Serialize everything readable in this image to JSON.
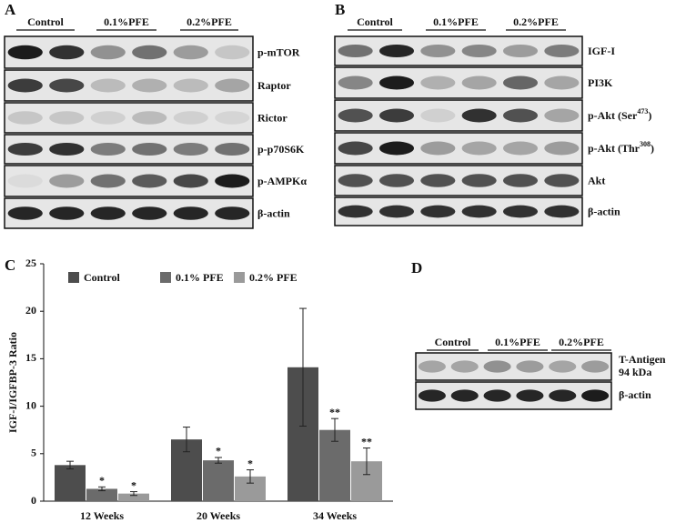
{
  "panel_a": {
    "label": "A",
    "groups": [
      "Control",
      "0.1%PFE",
      "0.2%PFE"
    ],
    "rows": [
      {
        "main": "p-mTOR"
      },
      {
        "main": "Raptor"
      },
      {
        "main": "Rictor"
      },
      {
        "main": "p-p70S6K"
      },
      {
        "main": "p-AMPKα"
      },
      {
        "main": "β-actin"
      }
    ]
  },
  "panel_b": {
    "label": "B",
    "groups": [
      "Control",
      "0.1%PFE",
      "0.2%PFE"
    ],
    "rows": [
      {
        "main": "IGF-I"
      },
      {
        "main": "PI3K"
      },
      {
        "main": "p-Akt (Ser",
        "sup": "473",
        "tail": ")"
      },
      {
        "main": "p-Akt (Thr",
        "sup": "308",
        "tail": ")"
      },
      {
        "main": "Akt"
      },
      {
        "main": "β-actin"
      }
    ]
  },
  "panel_c": {
    "label": "C"
  },
  "chart_data": {
    "type": "bar",
    "ylabel": "IGF-I/IGFBP-3 Ratio",
    "categories": [
      "12 Weeks",
      "20 Weeks",
      "34 Weeks"
    ],
    "series": [
      {
        "name": "Control",
        "color": "#4d4d4d",
        "values": [
          3.8,
          6.5,
          14.1
        ],
        "errors": [
          0.4,
          1.3,
          6.2
        ]
      },
      {
        "name": "0.1% PFE",
        "color": "#6b6b6b",
        "values": [
          1.3,
          4.3,
          7.5
        ],
        "errors": [
          0.2,
          0.3,
          1.2
        ],
        "annotations": [
          "*",
          "*",
          "**"
        ]
      },
      {
        "name": "0.2% PFE",
        "color": "#9a9a9a",
        "values": [
          0.8,
          2.6,
          4.2
        ],
        "errors": [
          0.2,
          0.7,
          1.4
        ],
        "annotations": [
          "*",
          "*",
          "**"
        ]
      }
    ],
    "ylim": [
      0,
      25
    ],
    "yticks": [
      0,
      5,
      10,
      15,
      20,
      25
    ]
  },
  "panel_d": {
    "label": "D",
    "groups": [
      "Control",
      "0.1%PFE",
      "0.2%PFE"
    ],
    "rows": [
      {
        "lines": [
          "T-Antigen",
          "94 kDa"
        ]
      },
      {
        "lines": [
          "β-actin"
        ]
      }
    ]
  }
}
